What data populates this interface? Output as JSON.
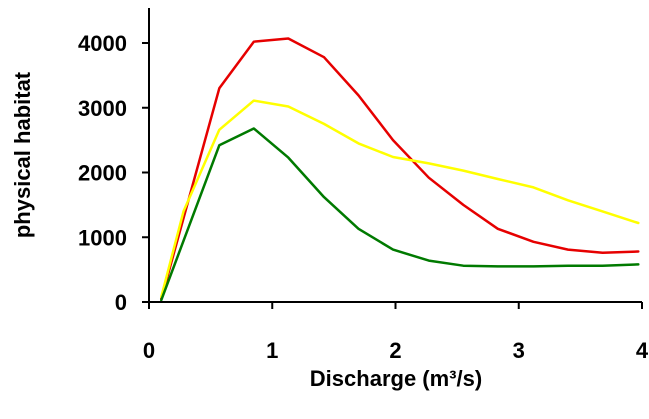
{
  "chart_data": {
    "type": "line",
    "title": "",
    "xlabel": "Discharge (m³/s)",
    "ylabel": "physical habitat",
    "xlim": [
      0,
      4
    ],
    "ylim": [
      0,
      4000
    ],
    "x_ticks": [
      "0",
      "1",
      "2",
      "3",
      "4"
    ],
    "y_ticks": [
      "0",
      "1000",
      "2000",
      "3000",
      "4000"
    ],
    "grid": false,
    "legend": "none",
    "series": [
      {
        "color": "#e60000",
        "points": [
          [
            0.1,
            50
          ],
          [
            0.57,
            3300
          ],
          [
            0.85,
            4020
          ],
          [
            1.13,
            4070
          ],
          [
            1.42,
            3780
          ],
          [
            1.7,
            3190
          ],
          [
            1.98,
            2500
          ],
          [
            2.27,
            1920
          ],
          [
            2.55,
            1500
          ],
          [
            2.83,
            1130
          ],
          [
            3.12,
            930
          ],
          [
            3.4,
            810
          ],
          [
            3.68,
            760
          ],
          [
            3.97,
            780
          ]
        ]
      },
      {
        "color": "#ffff00",
        "points": [
          [
            0.1,
            80
          ],
          [
            0.28,
            1400
          ],
          [
            0.57,
            2660
          ],
          [
            0.85,
            3110
          ],
          [
            1.13,
            3020
          ],
          [
            1.42,
            2750
          ],
          [
            1.7,
            2450
          ],
          [
            1.98,
            2240
          ],
          [
            2.27,
            2140
          ],
          [
            2.55,
            2030
          ],
          [
            2.83,
            1900
          ],
          [
            3.12,
            1770
          ],
          [
            3.4,
            1570
          ],
          [
            3.68,
            1400
          ],
          [
            3.97,
            1220
          ]
        ]
      },
      {
        "color": "#007a00",
        "points": [
          [
            0.1,
            30
          ],
          [
            0.57,
            2420
          ],
          [
            0.85,
            2680
          ],
          [
            1.13,
            2230
          ],
          [
            1.42,
            1620
          ],
          [
            1.7,
            1130
          ],
          [
            1.98,
            810
          ],
          [
            2.27,
            640
          ],
          [
            2.55,
            560
          ],
          [
            2.83,
            550
          ],
          [
            3.12,
            550
          ],
          [
            3.4,
            560
          ],
          [
            3.68,
            560
          ],
          [
            3.97,
            580
          ]
        ]
      }
    ]
  }
}
